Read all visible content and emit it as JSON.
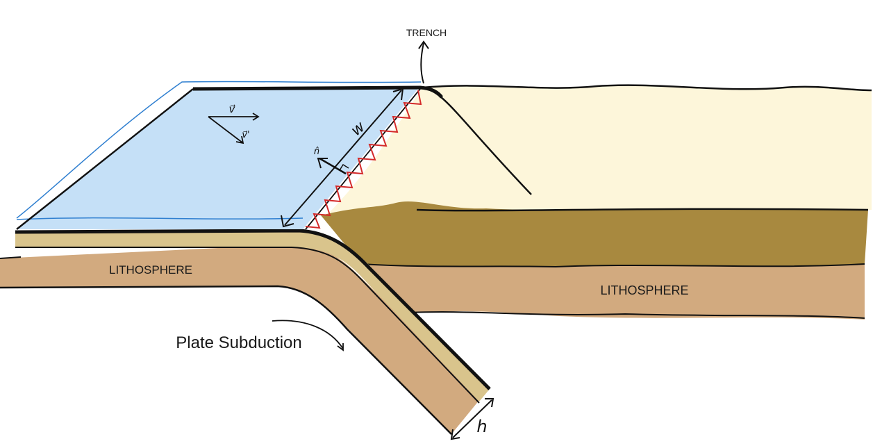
{
  "labels": {
    "trench": "TRENCH",
    "lithosphere_left": "LITHOSPHERE",
    "lithosphere_right": "LITHOSPHERE",
    "plate_subduction": "Plate Subduction",
    "width_symbol": "w",
    "thickness_symbol": "h",
    "normal_symbol": "n̂",
    "velocity_symbol": "v⃗",
    "velocity_prime_symbol": "v⃗'"
  },
  "colors": {
    "ocean": "#c5e0f7",
    "ocean_edge": "#2f7fd0",
    "upper_plate": "#fdf6da",
    "sediment": "#a8893f",
    "lithosphere": "#d2aa7f",
    "crust_band": "#d9c48c",
    "fault": "#d42a2a",
    "ink": "#111111"
  }
}
